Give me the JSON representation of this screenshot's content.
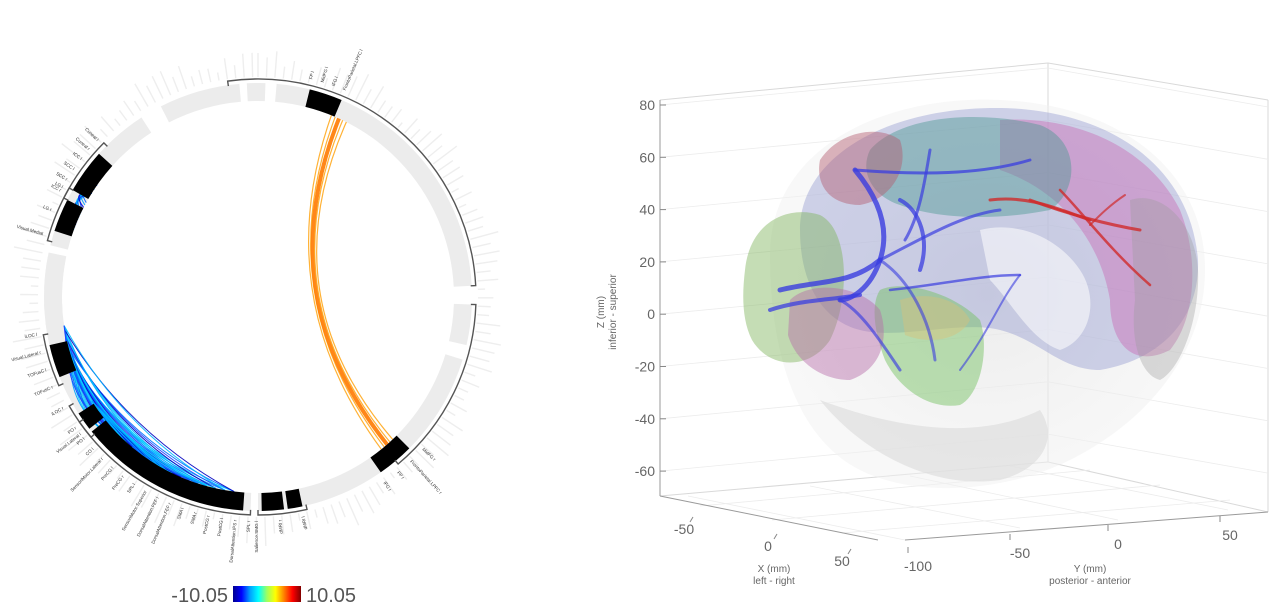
{
  "colorbar": {
    "min_label": "-10.05",
    "max_label": "10.05",
    "stops": [
      "#00008f",
      "#0000ff",
      "#00a0ff",
      "#00ffff",
      "#9fff60",
      "#ffff00",
      "#ff8000",
      "#ff0000",
      "#800000"
    ]
  },
  "connectome_ring": {
    "roi_groups": [
      {
        "labels": [
          "Visual.Medial",
          "LG r",
          "LG l"
        ]
      },
      {
        "labels": [
          "ICC r",
          "SCC r",
          "SCC l",
          "ICC l",
          "Cuneal r",
          "Cuneal l"
        ]
      },
      {
        "labels": [
          "TOFusC r",
          "TOFusC l",
          "Visual.Lateral r",
          "iLOC l"
        ]
      },
      {
        "labels": [
          "Visual.Lateral l",
          "iLOC r"
        ]
      },
      {
        "labels": [
          "SPL r",
          "DorsalAttention.IPS r",
          "PostCG l",
          "PostCG r",
          "SMA r",
          "SMA l",
          "DorsalAttention.FEF r",
          "DorsalAttention.FEF l",
          "SensoriMotor.Superior",
          "SPL l",
          "PreCG r",
          "PreCG l",
          "SensoriMotor.Lateral r",
          "CO l",
          "PO l",
          "PO r"
        ]
      },
      {
        "labels": [
          "dMRI l",
          "dMRI r",
          "Salience.SMG l"
        ]
      },
      {
        "labels": [
          "FP l",
          "MidFG l",
          "IFG l",
          "FrontoParietal.LPFC l"
        ]
      },
      {
        "labels": [
          "MidFG r",
          "FrontoParietal.LPFC r",
          "FP r",
          "IFG r"
        ]
      }
    ]
  },
  "brain_plot": {
    "z_axis": {
      "title": "Z (mm)",
      "subtitle": "inferior - superior",
      "ticks": [
        "80",
        "60",
        "40",
        "20",
        "0",
        "-20",
        "-40",
        "-60"
      ]
    },
    "x_axis": {
      "title": "X (mm)",
      "subtitle": "left - right",
      "ticks": [
        "-50",
        "0",
        "50"
      ]
    },
    "y_axis": {
      "title": "Y (mm)",
      "subtitle": "posterior - anterior",
      "ticks": [
        "-100",
        "-50",
        "0",
        "50"
      ]
    }
  }
}
